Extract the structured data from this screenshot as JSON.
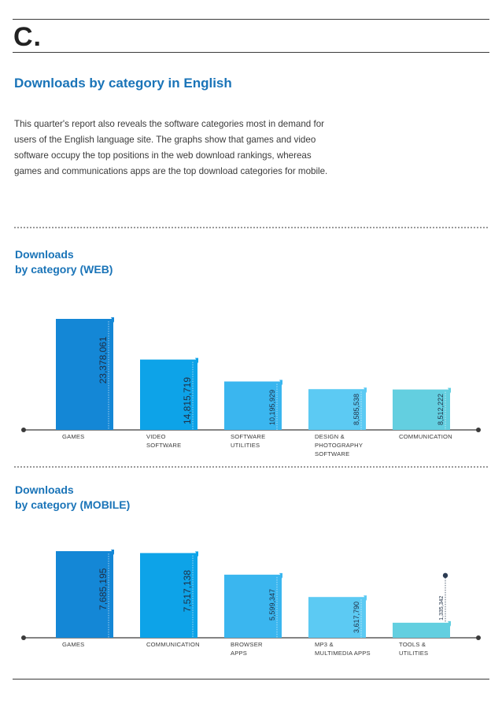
{
  "section_letter": "C.",
  "title": "Downloads by category in English",
  "intro": "This quarter's report also reveals the software categories most in demand for users of the English language site. The graphs show that games and video software occupy the top positions in the web download rankings, whereas games and communications apps are the top download categories for mobile.",
  "colors": {
    "accent": "#1a74b8",
    "bar_shades": [
      "#1487d6",
      "#0da3e8",
      "#3ab6ef",
      "#5ccaf3",
      "#63cfe0"
    ]
  },
  "chart_data": [
    {
      "type": "bar",
      "title_lines": [
        "Downloads",
        "by category (WEB)"
      ],
      "categories": [
        [
          "GAMES"
        ],
        [
          "VIDEO",
          "SOFTWARE"
        ],
        [
          "SOFTWARE",
          "UTILITIES"
        ],
        [
          "DESIGN &",
          "PHOTOGRAPHY",
          "SOFTWARE"
        ],
        [
          "COMMUNICATION"
        ]
      ],
      "values": [
        23378061,
        14815719,
        10195929,
        8585538,
        8512222
      ],
      "value_labels": [
        "23,378,061",
        "14,815,719",
        "10,195,929",
        "8,585,538",
        "8,512,222"
      ]
    },
    {
      "type": "bar",
      "title_lines": [
        "Downloads",
        "by category (MOBILE)"
      ],
      "categories": [
        [
          "GAMES"
        ],
        [
          "COMMUNICATION"
        ],
        [
          "BROWSER",
          "APPS"
        ],
        [
          "MP3 &",
          "MULTIMEDIA APPS"
        ],
        [
          "TOOLS &",
          "UTILITIES"
        ]
      ],
      "values": [
        7685195,
        7517138,
        5599347,
        3617790,
        1335342
      ],
      "value_labels": [
        "7,685,195",
        "7,517,138",
        "5,599,347",
        "3,617,790",
        "1,335,342"
      ]
    }
  ]
}
